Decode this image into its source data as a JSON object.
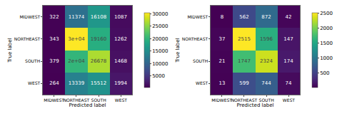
{
  "chart_data": [
    {
      "type": "heatmap",
      "xlabel": "Predicted label",
      "ylabel": "True label",
      "x": [
        "MIDWEST",
        "NORTHEAST",
        "SOUTH",
        "WEST"
      ],
      "y": [
        "MIDWEST",
        "NORTHEAST",
        "SOUTH",
        "WEST"
      ],
      "values": [
        [
          322,
          11374,
          16108,
          1087
        ],
        [
          343,
          30400,
          19160,
          1262
        ],
        [
          379,
          20100,
          26678,
          1468
        ],
        [
          264,
          13339,
          15512,
          1994
        ]
      ],
      "value_labels": [
        [
          "322",
          "11374",
          "16108",
          "1087"
        ],
        [
          "343",
          "3e+04",
          "19160",
          "1262"
        ],
        [
          "379",
          "2e+04",
          "26678",
          "1468"
        ],
        [
          "264",
          "13339",
          "15512",
          "1994"
        ]
      ],
      "color": "viridis",
      "zlim": [
        264,
        30400
      ],
      "zticks": [
        5000,
        10000,
        15000,
        20000,
        25000,
        30000
      ]
    },
    {
      "type": "heatmap",
      "xlabel": "Predicted label",
      "ylabel": "True label",
      "x": [
        "MIDWEST",
        "NORTHEAST",
        "SOUTH",
        "WEST"
      ],
      "y": [
        "MIDWEST",
        "NORTHEAST",
        "SOUTH",
        "WEST"
      ],
      "values": [
        [
          8,
          562,
          872,
          42
        ],
        [
          37,
          2515,
          1596,
          147
        ],
        [
          21,
          1747,
          2324,
          174
        ],
        [
          13,
          599,
          744,
          74
        ]
      ],
      "color": "viridis",
      "zlim": [
        8,
        2515
      ],
      "zticks": [
        500,
        1000,
        1500,
        2000,
        2500
      ]
    }
  ]
}
